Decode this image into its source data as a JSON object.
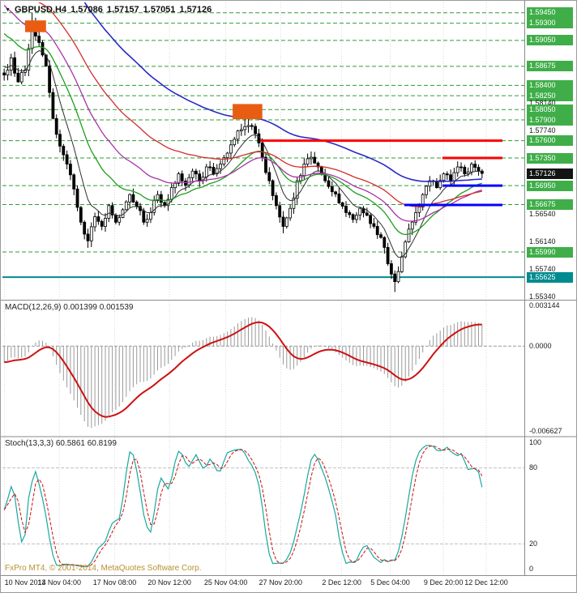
{
  "header": {
    "marker": "▼",
    "symbol": "GBPUSD,H4",
    "open": "1.57086",
    "high": "1.57157",
    "low": "1.57051",
    "close": "1.57126"
  },
  "indicators": {
    "macd_label": "MACD(12,26,9) 0.001399 0.001539",
    "stoch_label": "Stoch(13,3,3) 60.5861 60.8199"
  },
  "footer": {
    "copyright": "FxPro MT4, © 2001-2014, MetaQuotes Software Corp."
  },
  "colors": {
    "level_green": "#2f9e33",
    "label_green_bg": "#3fae49",
    "teal": "#008b8f",
    "current_bg": "#141414",
    "trend_red": "#fb0200",
    "trend_blue": "#0500fb",
    "macd_signal": "#cc1111",
    "macd_hist": "#9a9a9a",
    "stoch_k": "#18a8a0",
    "stoch_d": "#cc1111"
  },
  "chart_data": {
    "type": "candlestick",
    "symbol": "GBPUSD",
    "timeframe": "H4",
    "ohlc_current": {
      "open": 1.57086,
      "high": 1.57157,
      "low": 1.57051,
      "close": 1.57126
    },
    "bar_count": 138,
    "first_open": 1.5858,
    "seed": 7,
    "noise": 0.0011,
    "price_axis": {
      "max": 1.596,
      "min": 1.5531
    },
    "price_waypoints": [
      [
        0,
        1.5855
      ],
      [
        2,
        1.588
      ],
      [
        4,
        1.5845
      ],
      [
        6,
        1.5862
      ],
      [
        8,
        1.592
      ],
      [
        10,
        1.5902
      ],
      [
        12,
        1.5868
      ],
      [
        14,
        1.5792
      ],
      [
        16,
        1.5752
      ],
      [
        18,
        1.5726
      ],
      [
        20,
        1.569
      ],
      [
        22,
        1.5642
      ],
      [
        24,
        1.5615
      ],
      [
        26,
        1.565
      ],
      [
        28,
        1.5636
      ],
      [
        30,
        1.5666
      ],
      [
        32,
        1.5642
      ],
      [
        34,
        1.566
      ],
      [
        36,
        1.5682
      ],
      [
        38,
        1.5665
      ],
      [
        40,
        1.5642
      ],
      [
        42,
        1.5656
      ],
      [
        44,
        1.5682
      ],
      [
        46,
        1.5666
      ],
      [
        48,
        1.5692
      ],
      [
        50,
        1.5712
      ],
      [
        52,
        1.5696
      ],
      [
        54,
        1.5716
      ],
      [
        56,
        1.5702
      ],
      [
        58,
        1.5722
      ],
      [
        60,
        1.5712
      ],
      [
        62,
        1.5726
      ],
      [
        64,
        1.5742
      ],
      [
        66,
        1.5762
      ],
      [
        68,
        1.5776
      ],
      [
        70,
        1.5782
      ],
      [
        72,
        1.577
      ],
      [
        74,
        1.5736
      ],
      [
        76,
        1.5702
      ],
      [
        78,
        1.5666
      ],
      [
        80,
        1.5636
      ],
      [
        82,
        1.5662
      ],
      [
        84,
        1.5702
      ],
      [
        86,
        1.5726
      ],
      [
        88,
        1.5736
      ],
      [
        90,
        1.5722
      ],
      [
        92,
        1.5702
      ],
      [
        94,
        1.5686
      ],
      [
        96,
        1.567
      ],
      [
        98,
        1.5656
      ],
      [
        100,
        1.5646
      ],
      [
        102,
        1.5662
      ],
      [
        104,
        1.5652
      ],
      [
        106,
        1.5636
      ],
      [
        108,
        1.562
      ],
      [
        110,
        1.5582
      ],
      [
        112,
        1.5556
      ],
      [
        114,
        1.5592
      ],
      [
        116,
        1.5632
      ],
      [
        118,
        1.5656
      ],
      [
        120,
        1.5682
      ],
      [
        122,
        1.5702
      ],
      [
        124,
        1.5692
      ],
      [
        126,
        1.5712
      ],
      [
        128,
        1.5702
      ],
      [
        130,
        1.5722
      ],
      [
        132,
        1.5712
      ],
      [
        134,
        1.5726
      ],
      [
        136,
        1.5716
      ],
      [
        137,
        1.57126
      ]
    ],
    "spikes": [
      {
        "i": 8,
        "h": 1.5945
      },
      {
        "i": 9,
        "h": 1.5938
      },
      {
        "i": 24,
        "l": 1.5605
      },
      {
        "i": 69,
        "h": 1.5795
      },
      {
        "i": 70,
        "h": 1.58
      },
      {
        "i": 80,
        "l": 1.5626
      },
      {
        "i": 111,
        "l": 1.556
      },
      {
        "i": 112,
        "l": 1.5541
      }
    ],
    "moving_averages": [
      {
        "name": "ma-fast-black",
        "period": 8,
        "init": 1.587,
        "color": "#303030",
        "width": 1
      },
      {
        "name": "ma-green",
        "period": 21,
        "init": 1.5921,
        "color": "#1f9e1f",
        "width": 1.3
      },
      {
        "name": "ma-violet",
        "period": 34,
        "init": 1.5962,
        "color": "#a832a8",
        "width": 1.3
      },
      {
        "name": "ma-red",
        "period": 55,
        "init": 1.6,
        "color": "#d22d2d",
        "width": 1.3
      },
      {
        "name": "ma-blue",
        "period": 89,
        "init": 1.608,
        "color": "#2929c8",
        "width": 1.6
      }
    ],
    "price_scale": [
      {
        "text": "1.59450",
        "price": 1.5945,
        "kind": "green"
      },
      {
        "text": "1.59300",
        "price": 1.593,
        "kind": "green"
      },
      {
        "text": "1.59050",
        "price": 1.5905,
        "kind": "green"
      },
      {
        "text": "1.58675",
        "price": 1.58675,
        "kind": "green"
      },
      {
        "text": "1.58400",
        "price": 1.584,
        "kind": "green"
      },
      {
        "text": "1.58250",
        "price": 1.5825,
        "kind": "green"
      },
      {
        "text": "1.58140",
        "price": 1.5814,
        "kind": "plain"
      },
      {
        "text": "1.58050",
        "price": 1.5805,
        "kind": "green"
      },
      {
        "text": "1.57900",
        "price": 1.579,
        "kind": "green"
      },
      {
        "text": "1.57740",
        "price": 1.5774,
        "kind": "plain"
      },
      {
        "text": "1.57600",
        "price": 1.576,
        "kind": "green"
      },
      {
        "text": "1.57350",
        "price": 1.5735,
        "kind": "green"
      },
      {
        "text": "1.57126",
        "price": 1.57126,
        "kind": "current"
      },
      {
        "text": "1.56950",
        "price": 1.5695,
        "kind": "green"
      },
      {
        "text": "1.56675",
        "price": 1.56675,
        "kind": "green"
      },
      {
        "text": "1.56540",
        "price": 1.5654,
        "kind": "plain"
      },
      {
        "text": "1.56140",
        "price": 1.5614,
        "kind": "plain"
      },
      {
        "text": "1.55990",
        "price": 1.5599,
        "kind": "green"
      },
      {
        "text": "1.55740",
        "price": 1.5574,
        "kind": "plain"
      },
      {
        "text": "1.55625",
        "price": 1.55625,
        "kind": "teal"
      },
      {
        "text": "1.55340",
        "price": 1.5534,
        "kind": "plain"
      }
    ],
    "trend_segments": [
      {
        "price": 1.576,
        "x0": 0.494,
        "x1": 0.958,
        "color": "#fb0200",
        "width": 3
      },
      {
        "price": 1.5735,
        "x0": 0.843,
        "x1": 0.958,
        "color": "#fb0200",
        "width": 3
      },
      {
        "price": 1.5695,
        "x0": 0.843,
        "x1": 0.958,
        "color": "#0500fb",
        "width": 3
      },
      {
        "price": 1.5667,
        "x0": 0.77,
        "x1": 0.958,
        "color": "#0500fb",
        "width": 3
      }
    ],
    "highlight_boxes": [
      {
        "i0": 6.5,
        "i1": 11.5,
        "p_top": 1.5934,
        "p_bot": 1.5917,
        "color": "#e95d12"
      },
      {
        "i0": 66,
        "i1": 73.5,
        "p_top": 1.5813,
        "p_bot": 1.5791,
        "color": "#e95d12"
      }
    ],
    "time_axis": [
      {
        "label": "10 Nov 2014",
        "f": 0.004
      },
      {
        "label": "13 Nov 04:00",
        "f": 0.109
      },
      {
        "label": "17 Nov 08:00",
        "f": 0.215
      },
      {
        "label": "20 Nov 12:00",
        "f": 0.32
      },
      {
        "label": "25 Nov 04:00",
        "f": 0.428
      },
      {
        "label": "27 Nov 20:00",
        "f": 0.533
      },
      {
        "label": "2 Dec 12:00",
        "f": 0.65
      },
      {
        "label": "5 Dec 04:00",
        "f": 0.743
      },
      {
        "label": "9 Dec 20:00",
        "f": 0.845
      },
      {
        "label": "12 Dec 12:00",
        "f": 0.927
      }
    ],
    "macd": {
      "fast": 12,
      "slow": 26,
      "signal": 9,
      "init_fast": 1.5861,
      "init_slow": 1.5874,
      "current_macd": 0.001399,
      "current_signal": 0.001539,
      "axis_max": 0.0035,
      "axis_min": -0.007,
      "axis_labels": [
        {
          "text": "0.003144",
          "v": 0.003144
        },
        {
          "text": "0.0000",
          "v": 0
        },
        {
          "text": "-0.006627",
          "v": -0.006627
        }
      ]
    },
    "stoch": {
      "k": 13,
      "slowing": 3,
      "d": 3,
      "current_k": 60.5861,
      "current_d": 60.8199,
      "levels": [
        80,
        20
      ],
      "axis_labels": [
        {
          "text": "100",
          "v": 100
        },
        {
          "text": "80",
          "v": 80
        },
        {
          "text": "20",
          "v": 20
        },
        {
          "text": "0",
          "v": 0
        }
      ]
    }
  }
}
